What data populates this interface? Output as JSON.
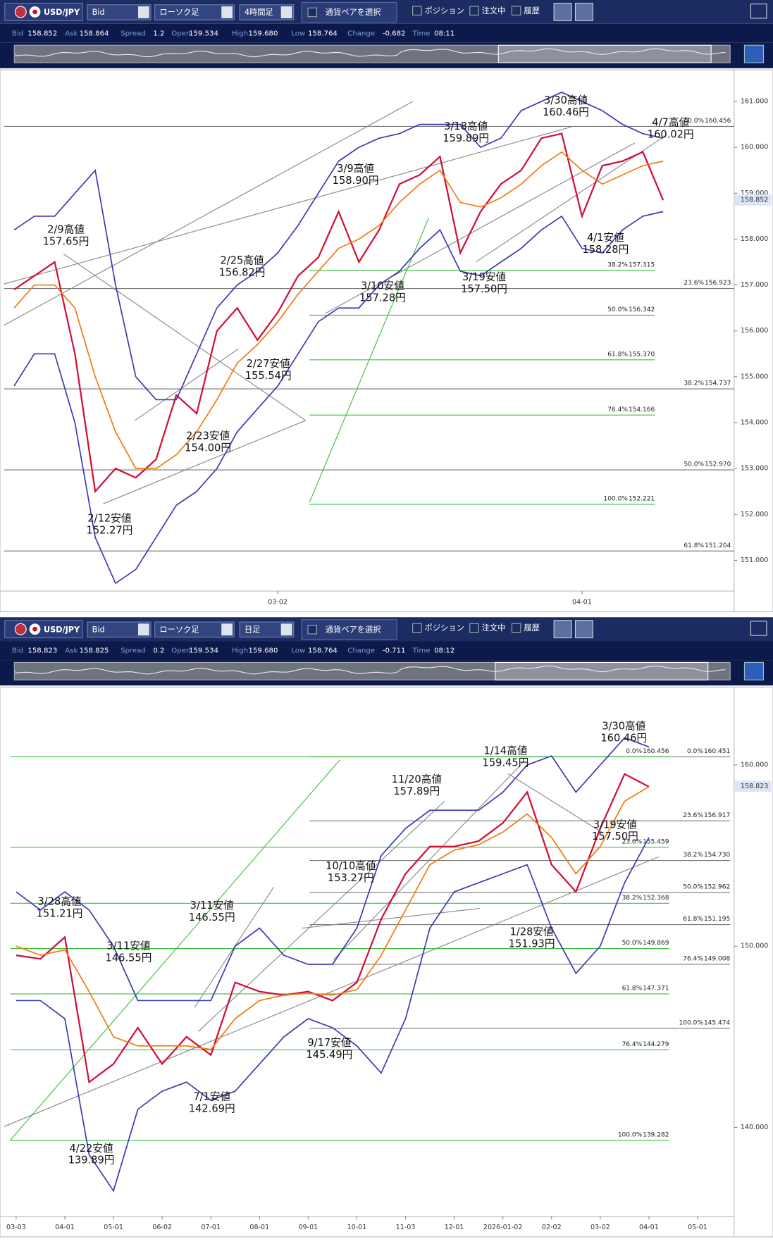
{
  "toolbars": [
    {
      "pair": "USD/JPY",
      "price_type": "Bid",
      "chart_type": "ローソク足",
      "timeframe": "4時間足",
      "select_pair": "通貨ペアを選択",
      "checks": [
        "ポジション",
        "注文中",
        "履歴"
      ],
      "info": [
        {
          "label": "Bid",
          "value": 158.852
        },
        {
          "label": "Ask",
          "value": 158.864
        },
        {
          "label": "Spread",
          "value": 1.2
        },
        {
          "label": "Open",
          "value": 159.534
        },
        {
          "label": "High",
          "value": 159.68,
          "value_label": "159.680"
        },
        {
          "label": "Low",
          "value": 158.764
        },
        {
          "label": "Change",
          "value": -0.682
        },
        {
          "label": "Time",
          "value": "08:11"
        }
      ]
    },
    {
      "pair": "USD/JPY",
      "price_type": "Bid",
      "chart_type": "ローソク足",
      "timeframe": "日足",
      "select_pair": "通貨ペアを選択",
      "checks": [
        "ポジション",
        "注文中",
        "履歴"
      ],
      "info": [
        {
          "label": "Bid",
          "value": 158.823
        },
        {
          "label": "Ask",
          "value": 158.825
        },
        {
          "label": "Spread",
          "value": 0.2
        },
        {
          "label": "Open",
          "value": 159.534
        },
        {
          "label": "High",
          "value": 159.68,
          "value_label": "159.680"
        },
        {
          "label": "Low",
          "value": 158.764
        },
        {
          "label": "Change",
          "value": -0.711
        },
        {
          "label": "Time",
          "value": "08:12"
        }
      ]
    }
  ],
  "chart_data": [
    {
      "type": "line",
      "categories": [
        null,
        null,
        null,
        null,
        null,
        null,
        null,
        null,
        null,
        null,
        null,
        null,
        null,
        "03-02",
        null,
        null,
        null,
        null,
        null,
        null,
        null,
        null,
        null,
        null,
        null,
        null,
        null,
        null,
        "04-01",
        null,
        null,
        null,
        null,
        null,
        null,
        null
      ],
      "series": [
        {
          "color": "#d0103a",
          "values": [
            156.9,
            157.2,
            157.5,
            155.5,
            152.5,
            153.0,
            152.8,
            153.2,
            154.6,
            154.2,
            156.0,
            156.5,
            155.8,
            156.4,
            157.2,
            157.6,
            158.6,
            157.5,
            158.2,
            159.2,
            159.4,
            159.8,
            157.7,
            158.6,
            159.2,
            159.5,
            160.2,
            160.3,
            158.5,
            159.6,
            159.7,
            159.9,
            158.85,
            null,
            null,
            null
          ]
        },
        {
          "color": "#f07a10",
          "values": [
            156.5,
            157.0,
            157.0,
            156.5,
            155.0,
            153.8,
            153.0,
            153.0,
            153.3,
            153.8,
            154.5,
            155.3,
            155.7,
            156.2,
            156.8,
            157.3,
            157.8,
            158.0,
            158.3,
            158.8,
            159.2,
            159.5,
            158.8,
            158.7,
            158.9,
            159.2,
            159.6,
            159.9,
            159.5,
            159.2,
            159.4,
            159.6,
            159.7,
            null,
            null,
            null
          ]
        },
        {
          "color": "#3a3ab8",
          "values": [
            158.2,
            158.5,
            158.5,
            159.0,
            159.5,
            157.0,
            155.0,
            154.5,
            154.5,
            155.5,
            156.5,
            157.0,
            157.3,
            157.7,
            158.3,
            159.0,
            159.7,
            160.0,
            160.2,
            160.3,
            160.5,
            160.5,
            160.5,
            160.0,
            160.2,
            160.8,
            161.0,
            161.2,
            161.0,
            160.8,
            160.5,
            160.3,
            160.2,
            null,
            null,
            null
          ]
        },
        {
          "color": "#3a3ab8",
          "values": [
            154.8,
            155.5,
            155.5,
            154.0,
            151.5,
            150.5,
            150.8,
            151.5,
            152.2,
            152.5,
            153.0,
            153.8,
            154.3,
            154.8,
            155.5,
            156.2,
            156.5,
            156.5,
            157.0,
            157.3,
            157.8,
            158.2,
            157.3,
            157.2,
            157.5,
            157.8,
            158.2,
            158.5,
            157.8,
            157.7,
            158.2,
            158.5,
            158.6,
            null,
            null,
            null
          ]
        }
      ],
      "ylim": [
        150.33,
        161.69
      ],
      "yticks": [
        {
          "value": 151,
          "label": "151.000"
        },
        {
          "value": 152,
          "label": "152.000"
        },
        {
          "value": 153,
          "label": "153.000"
        },
        {
          "value": 154,
          "label": "154.000"
        },
        {
          "value": 155,
          "label": "155.000"
        },
        {
          "value": 156,
          "label": "156.000"
        },
        {
          "value": 157,
          "label": "157.000"
        },
        {
          "value": 158,
          "label": "158.000"
        },
        {
          "value": 159,
          "label": "159.000"
        },
        {
          "value": 160,
          "label": "160.000"
        },
        {
          "value": 161,
          "label": "161.000"
        }
      ],
      "price_tag": 158.852,
      "fib_sets": [
        {
          "color": "#777777",
          "levels": [
            {
              "label": "0.0%",
              "value": 160.456
            },
            {
              "label": "23.6%",
              "value": 156.923
            },
            {
              "label": "38.2%",
              "value": 154.737
            },
            {
              "label": "50.0%",
              "value": 152.97,
              "value_label": "152.970"
            },
            {
              "label": "61.8%",
              "value": 151.204
            }
          ]
        },
        {
          "color": "#3cbf3c",
          "levels": [
            {
              "label": "38.2%",
              "value": 157.315
            },
            {
              "label": "50.0%",
              "value": 156.342
            },
            {
              "label": "61.8%",
              "value": 155.37,
              "value_label": "155.370"
            },
            {
              "label": "76.4%",
              "value": 154.166
            },
            {
              "label": "100.0%",
              "value": 152.221
            }
          ]
        }
      ],
      "annotations": [
        {
          "date_label": "2/9高値",
          "price_label": "157.65円"
        },
        {
          "date_label": "2/12安値",
          "price_label": "152.27円"
        },
        {
          "date_label": "2/23安値",
          "price_label": "154.00円"
        },
        {
          "date_label": "2/25高値",
          "price_label": "156.82円"
        },
        {
          "date_label": "2/27安値",
          "price_label": "155.54円"
        },
        {
          "date_label": "3/9高値",
          "price_label": "158.90円"
        },
        {
          "date_label": "3/10安値",
          "price_label": "157.28円"
        },
        {
          "date_label": "3/18高値",
          "price_label": "159.89円"
        },
        {
          "date_label": "3/19安値",
          "price_label": "157.50円"
        },
        {
          "date_label": "3/30高値",
          "price_label": "160.46円"
        },
        {
          "date_label": "4/1安値",
          "price_label": "158.28円"
        },
        {
          "date_label": "4/7高値",
          "price_label": "160.02円"
        }
      ]
    },
    {
      "type": "line",
      "categories": [
        "03-03",
        null,
        "04-01",
        null,
        "05-01",
        null,
        "06-02",
        null,
        "07-01",
        null,
        "08-01",
        null,
        "09-01",
        null,
        "10-01",
        null,
        "11-03",
        null,
        "12-01",
        null,
        "2026-01-02",
        null,
        "02-02",
        null,
        "03-02",
        null,
        "04-01",
        null,
        "05-01",
        null
      ],
      "series": [
        {
          "color": "#d0103a",
          "values": [
            149.5,
            149.3,
            150.5,
            142.5,
            143.5,
            145.5,
            143.5,
            145.0,
            144.0,
            148.0,
            147.5,
            147.3,
            147.5,
            147.0,
            148.0,
            151.5,
            154.0,
            155.5,
            155.5,
            155.8,
            156.8,
            158.5,
            154.5,
            153.0,
            156.5,
            159.5,
            158.8,
            null,
            null,
            null
          ]
        },
        {
          "color": "#f07a10",
          "values": [
            150.0,
            149.5,
            149.8,
            147.5,
            145.0,
            144.5,
            144.5,
            144.5,
            144.3,
            146.0,
            147.0,
            147.3,
            147.4,
            147.3,
            147.6,
            149.5,
            152.0,
            154.5,
            155.3,
            155.6,
            156.3,
            157.3,
            156.0,
            154.0,
            155.5,
            158.0,
            158.8,
            null,
            null,
            null
          ]
        },
        {
          "color": "#3a3ab8",
          "values": [
            153.0,
            152.0,
            153.0,
            152.0,
            150.0,
            147.0,
            147.0,
            147.0,
            147.0,
            150.0,
            151.0,
            149.5,
            149.0,
            149.0,
            151.0,
            155.0,
            156.5,
            157.5,
            157.5,
            157.5,
            158.5,
            160.0,
            160.5,
            158.5,
            160.0,
            161.5,
            161.0,
            null,
            null,
            null
          ]
        },
        {
          "color": "#3a3ab8",
          "values": [
            147.0,
            147.0,
            146.0,
            138.5,
            136.5,
            141.0,
            142.0,
            142.5,
            141.5,
            142.0,
            143.5,
            145.0,
            146.0,
            145.5,
            144.5,
            143.0,
            146.0,
            151.0,
            153.0,
            153.5,
            154.0,
            154.5,
            151.0,
            148.5,
            150.0,
            153.5,
            156.0,
            null,
            null,
            null
          ]
        }
      ],
      "ylim": [
        135.1,
        164.3
      ],
      "yticks": [
        {
          "value": 140,
          "label": "140.000"
        },
        {
          "value": 150,
          "label": "150.000"
        },
        {
          "value": 160,
          "label": "160.000"
        }
      ],
      "price_tag": 158.823,
      "fib_sets": [
        {
          "color": "#777777",
          "levels": [
            {
              "label": "0.0%",
              "value": 160.451
            },
            {
              "label": "23.6%",
              "value": 156.917
            },
            {
              "label": "38.2%",
              "value": 154.73,
              "value_label": "154.730"
            },
            {
              "label": "50.0%",
              "value": 152.962
            },
            {
              "label": "61.8%",
              "value": 151.195
            },
            {
              "label": "76.4%",
              "value": 149.008
            },
            {
              "label": "100.0%",
              "value": 145.474
            }
          ]
        },
        {
          "color": "#3cbf3c",
          "levels": [
            {
              "label": "0.0%",
              "value": 160.456
            },
            {
              "label": "23.6%",
              "value": 155.459
            },
            {
              "label": "38.2%",
              "value": 152.368
            },
            {
              "label": "50.0%",
              "value": 149.869
            },
            {
              "label": "61.8%",
              "value": 147.371
            },
            {
              "label": "76.4%",
              "value": 144.279
            },
            {
              "label": "100.0%",
              "value": 139.282
            }
          ]
        }
      ],
      "annotations": [
        {
          "date_label": "3/28高値",
          "price_label": "151.21円"
        },
        {
          "date_label": "3/11安値",
          "price_label": "146.55円"
        },
        {
          "date_label": "3/11安値",
          "price_label": "146.55円"
        },
        {
          "date_label": "4/22安値",
          "price_label": "139.89円"
        },
        {
          "date_label": "7/1安値",
          "price_label": "142.69円"
        },
        {
          "date_label": "9/17安値",
          "price_label": "145.49円"
        },
        {
          "date_label": "10/10高値",
          "price_label": "153.27円"
        },
        {
          "date_label": "11/20高値",
          "price_label": "157.89円"
        },
        {
          "date_label": "1/14高値",
          "price_label": "159.45円"
        },
        {
          "date_label": "1/28安値",
          "price_label": "151.93円"
        },
        {
          "date_label": "3/30高値",
          "price_label": "160.46円"
        },
        {
          "date_label": "3/19安値",
          "price_label": "157.50円"
        }
      ]
    }
  ]
}
